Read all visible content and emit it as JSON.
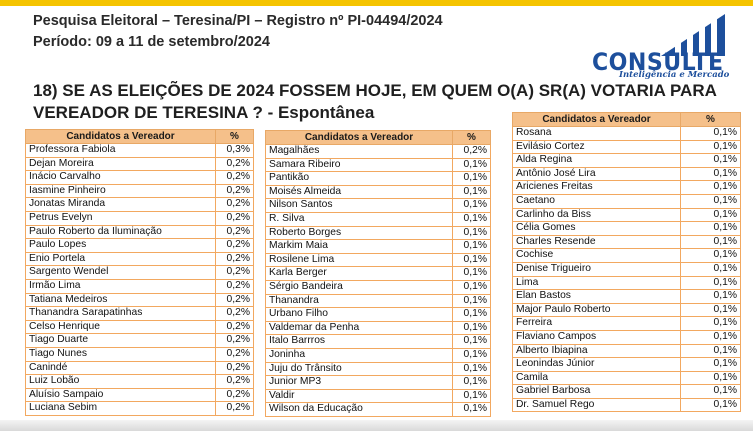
{
  "header": {
    "line1": "Pesquisa Eleitoral – Teresina/PI  – Registro nº PI-04494/2024",
    "line2": "Período: 09 a 11 de setembro/2024"
  },
  "logo": {
    "word": "CONSULTE",
    "tagline": "Inteligência e Mercado",
    "color": "#1d4f9c"
  },
  "question": {
    "text": "18) SE AS ELEIÇÕES DE 2024 FOSSEM HOJE, EM QUEM O(A) SR(A) VOTARIA PARA VEREADOR DE TERESINA ?",
    "suffix": " - Espontânea"
  },
  "columns": {
    "name": "Candidatos a Vereador",
    "pct": "%"
  },
  "table1": [
    [
      "Professora Fabiola",
      "0,3%"
    ],
    [
      "Dejan Moreira",
      "0,2%"
    ],
    [
      "Inácio Carvalho",
      "0,2%"
    ],
    [
      "Iasmine Pinheiro",
      "0,2%"
    ],
    [
      "Jonatas Miranda",
      "0,2%"
    ],
    [
      "Petrus Evelyn",
      "0,2%"
    ],
    [
      "Paulo Roberto da Iluminação",
      "0,2%"
    ],
    [
      "Paulo Lopes",
      "0,2%"
    ],
    [
      "Enio Portela",
      "0,2%"
    ],
    [
      "Sargento Wendel",
      "0,2%"
    ],
    [
      "Irmão Lima",
      "0,2%"
    ],
    [
      "Tatiana Medeiros",
      "0,2%"
    ],
    [
      "Thanandra Sarapatinhas",
      "0,2%"
    ],
    [
      "Celso Henrique",
      "0,2%"
    ],
    [
      "Tiago Duarte",
      "0,2%"
    ],
    [
      "Tiago Nunes",
      "0,2%"
    ],
    [
      "Canindé",
      "0,2%"
    ],
    [
      "Luiz Lobão",
      "0,2%"
    ],
    [
      "Aluísio Sampaio",
      "0,2%"
    ],
    [
      "Luciana Sebim",
      "0,2%"
    ]
  ],
  "table2": [
    [
      "Magalhães",
      "0,2%"
    ],
    [
      "Samara Ribeiro",
      "0,1%"
    ],
    [
      "Pantikão",
      "0,1%"
    ],
    [
      "Moisés Almeida",
      "0,1%"
    ],
    [
      "Nilson Santos",
      "0,1%"
    ],
    [
      "R. Silva",
      "0,1%"
    ],
    [
      "Roberto Borges",
      "0,1%"
    ],
    [
      "Markim Maia",
      "0,1%"
    ],
    [
      "Rosilene Lima",
      "0,1%"
    ],
    [
      "Karla Berger",
      "0,1%"
    ],
    [
      "Sérgio Bandeira",
      "0,1%"
    ],
    [
      "Thanandra",
      "0,1%"
    ],
    [
      "Urbano Filho",
      "0,1%"
    ],
    [
      "Valdemar da Penha",
      "0,1%"
    ],
    [
      "Italo Barrros",
      "0,1%"
    ],
    [
      "Joninha",
      "0,1%"
    ],
    [
      "Juju do Trânsito",
      "0,1%"
    ],
    [
      "Junior MP3",
      "0,1%"
    ],
    [
      "Valdir",
      "0,1%"
    ],
    [
      "Wilson da Educação",
      "0,1%"
    ]
  ],
  "table3": [
    [
      "Rosana",
      "0,1%"
    ],
    [
      "Evilásio Cortez",
      "0,1%"
    ],
    [
      "Alda Regina",
      "0,1%"
    ],
    [
      "Antônio José Lira",
      "0,1%"
    ],
    [
      "Aricienes Freitas",
      "0,1%"
    ],
    [
      "Caetano",
      "0,1%"
    ],
    [
      "Carlinho da Biss",
      "0,1%"
    ],
    [
      "Célia Gomes",
      "0,1%"
    ],
    [
      "Charles Resende",
      "0,1%"
    ],
    [
      "Cochise",
      "0,1%"
    ],
    [
      "Denise Trigueiro",
      "0,1%"
    ],
    [
      "Lima",
      "0,1%"
    ],
    [
      "Elan Bastos",
      "0,1%"
    ],
    [
      "Major Paulo Roberto",
      "0,1%"
    ],
    [
      "Ferreira",
      "0,1%"
    ],
    [
      "Flaviano Campos",
      "0,1%"
    ],
    [
      "Alberto Ibiapina",
      "0,1%"
    ],
    [
      "Leonindas Júnior",
      "0,1%"
    ],
    [
      "Camila",
      "0,1%"
    ],
    [
      "Gabriel Barbosa",
      "0,1%"
    ],
    [
      "Dr. Samuel Rego",
      "0,1%"
    ]
  ]
}
